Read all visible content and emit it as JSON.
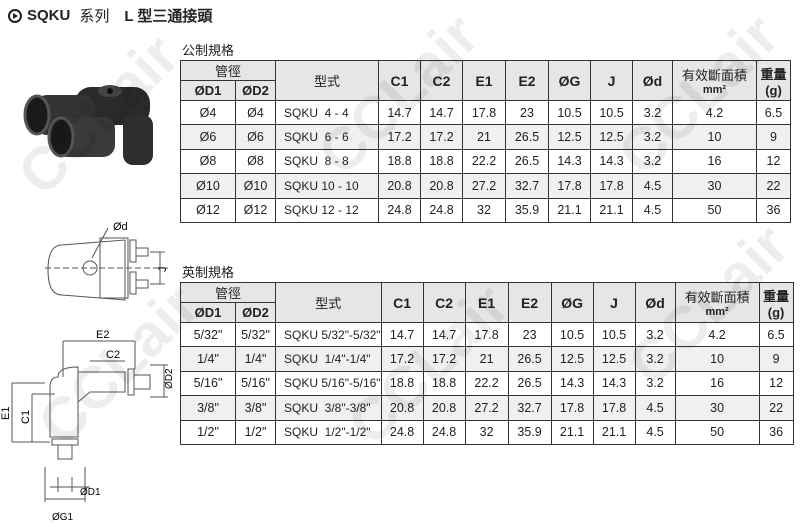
{
  "title": {
    "series": "SQKU",
    "series_label": "系列",
    "type": "L 型三通接頭"
  },
  "watermark": "CCLair",
  "headers": {
    "tube": "管徑",
    "d1": "ØD1",
    "d2": "ØD2",
    "model": "型式",
    "c1": "C1",
    "c2": "C2",
    "e1": "E1",
    "e2": "E2",
    "g": "ØG",
    "j": "J",
    "d": "Ød",
    "area": "有效斷面積",
    "area_unit": "mm²",
    "weight": "重量",
    "weight_unit": "(g)"
  },
  "metric": {
    "caption": "公制規格",
    "rows": [
      [
        "Ø4",
        "Ø4",
        "SQKU  4 - 4",
        "14.7",
        "14.7",
        "17.8",
        "23",
        "10.5",
        "10.5",
        "3.2",
        "4.2",
        "6.5"
      ],
      [
        "Ø6",
        "Ø6",
        "SQKU  6 - 6",
        "17.2",
        "17.2",
        "21",
        "26.5",
        "12.5",
        "12.5",
        "3.2",
        "10",
        "9"
      ],
      [
        "Ø8",
        "Ø8",
        "SQKU  8 - 8",
        "18.8",
        "18.8",
        "22.2",
        "26.5",
        "14.3",
        "14.3",
        "3.2",
        "16",
        "12"
      ],
      [
        "Ø10",
        "Ø10",
        "SQKU 10 - 10",
        "20.8",
        "20.8",
        "27.2",
        "32.7",
        "17.8",
        "17.8",
        "4.5",
        "30",
        "22"
      ],
      [
        "Ø12",
        "Ø12",
        "SQKU 12 - 12",
        "24.8",
        "24.8",
        "32",
        "35.9",
        "21.1",
        "21.1",
        "4.5",
        "50",
        "36"
      ]
    ]
  },
  "imperial": {
    "caption": "英制規格",
    "rows": [
      [
        "5/32\"",
        "5/32\"",
        "SQKU 5/32\"-5/32\"",
        "14.7",
        "14.7",
        "17.8",
        "23",
        "10.5",
        "10.5",
        "3.2",
        "4.2",
        "6.5"
      ],
      [
        "1/4\"",
        "1/4\"",
        "SQKU  1/4\"-1/4\"",
        "17.2",
        "17.2",
        "21",
        "26.5",
        "12.5",
        "12.5",
        "3.2",
        "10",
        "9"
      ],
      [
        "5/16\"",
        "5/16\"",
        "SQKU 5/16\"-5/16\"",
        "18.8",
        "18.8",
        "22.2",
        "26.5",
        "14.3",
        "14.3",
        "3.2",
        "16",
        "12"
      ],
      [
        "3/8\"",
        "3/8\"",
        "SQKU  3/8\"-3/8\"",
        "20.8",
        "20.8",
        "27.2",
        "32.7",
        "17.8",
        "17.8",
        "4.5",
        "30",
        "22"
      ],
      [
        "1/2\"",
        "1/2\"",
        "SQKU  1/2\"-1/2\"",
        "24.8",
        "24.8",
        "32",
        "35.9",
        "21.1",
        "21.1",
        "4.5",
        "50",
        "36"
      ]
    ]
  },
  "diagram": {
    "d": "Ød",
    "j": "J",
    "e2": "E2",
    "c2": "C2",
    "d2": "ØD2",
    "e1": "E1",
    "c1": "C1",
    "d1": "ØD1",
    "g1": "ØG1"
  }
}
